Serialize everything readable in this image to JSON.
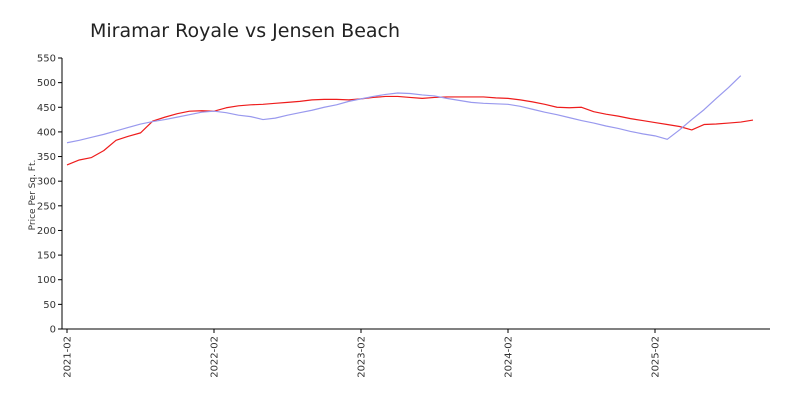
{
  "chart_data": {
    "type": "line",
    "title": "Miramar Royale vs Jensen Beach",
    "xlabel": "",
    "ylabel": "Price Per Sq. Ft.",
    "ylim": [
      0,
      550
    ],
    "yticks": [
      0,
      50,
      100,
      150,
      200,
      250,
      300,
      350,
      400,
      450,
      500,
      550
    ],
    "xlim": [
      "2021-02",
      "2025-12"
    ],
    "xticks": [
      "2021-02",
      "2022-02",
      "2023-02",
      "2024-02",
      "2025-02"
    ],
    "grid": false,
    "legend": "none",
    "x": [
      "2021-02",
      "2021-03",
      "2021-04",
      "2021-05",
      "2021-06",
      "2021-07",
      "2021-08",
      "2021-09",
      "2021-10",
      "2021-11",
      "2021-12",
      "2022-01",
      "2022-02",
      "2022-03",
      "2022-04",
      "2022-05",
      "2022-06",
      "2022-07",
      "2022-08",
      "2022-09",
      "2022-10",
      "2022-11",
      "2022-12",
      "2023-01",
      "2023-02",
      "2023-03",
      "2023-04",
      "2023-05",
      "2023-06",
      "2023-07",
      "2023-08",
      "2023-09",
      "2023-10",
      "2023-11",
      "2023-12",
      "2024-01",
      "2024-02",
      "2024-03",
      "2024-04",
      "2024-05",
      "2024-06",
      "2024-07",
      "2024-08",
      "2024-09",
      "2024-10",
      "2024-11",
      "2024-12",
      "2025-01",
      "2025-02",
      "2025-03",
      "2025-04",
      "2025-05",
      "2025-06",
      "2025-07",
      "2025-08",
      "2025-09",
      "2025-10",
      "2025-11",
      "2025-12"
    ],
    "series": [
      {
        "color": "#ee1c1c",
        "values": [
          333,
          343,
          348,
          362,
          383,
          391,
          398,
          422,
          430,
          437,
          442,
          443,
          442,
          449,
          453,
          455,
          456,
          458,
          460,
          462,
          465,
          466,
          466,
          465,
          467,
          470,
          472,
          472,
          470,
          468,
          470,
          471,
          471,
          471,
          471,
          469,
          468,
          465,
          461,
          456,
          450,
          449,
          450,
          441,
          436,
          432,
          427,
          423,
          419,
          415,
          411,
          404,
          415,
          416,
          418,
          420,
          424,
          null,
          null
        ]
      },
      {
        "color": "#9999ee",
        "values": [
          378,
          383,
          389,
          395,
          402,
          409,
          416,
          421,
          425,
          430,
          435,
          440,
          442,
          439,
          434,
          431,
          425,
          428,
          434,
          439,
          444,
          450,
          455,
          462,
          467,
          472,
          476,
          479,
          478,
          475,
          473,
          468,
          464,
          460,
          458,
          457,
          456,
          452,
          446,
          440,
          435,
          429,
          423,
          418,
          412,
          407,
          401,
          396,
          392,
          385,
          404,
          425,
          445,
          468,
          490,
          514,
          null,
          null,
          null
        ]
      }
    ]
  }
}
